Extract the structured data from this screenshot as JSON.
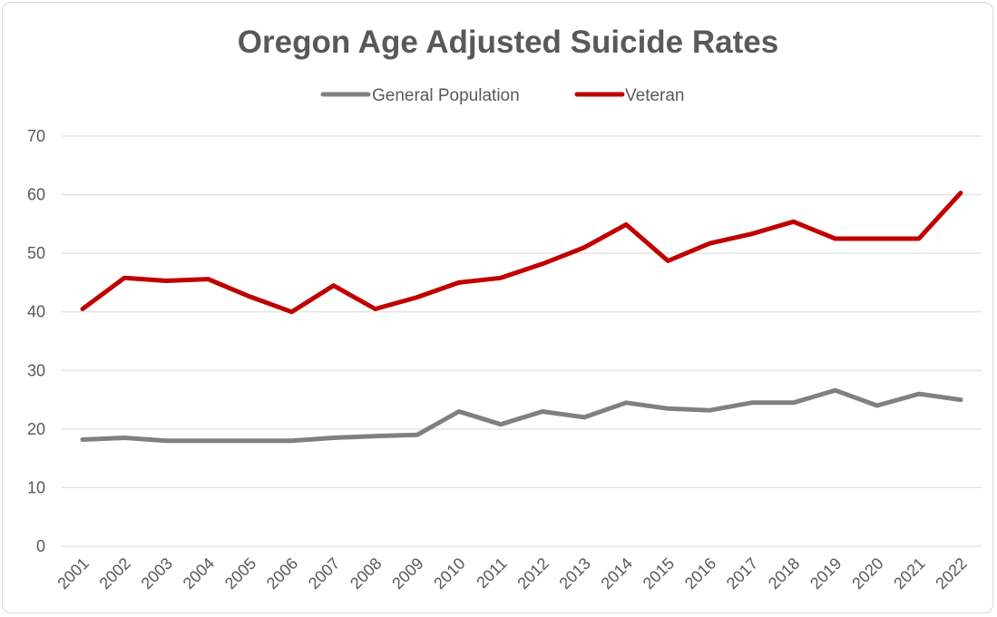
{
  "chart_data": {
    "type": "line",
    "title": "Oregon Age Adjusted Suicide Rates",
    "xlabel": "",
    "ylabel": "",
    "categories": [
      "2001",
      "2002",
      "2003",
      "2004",
      "2005",
      "2006",
      "2007",
      "2008",
      "2009",
      "2010",
      "2011",
      "2012",
      "2013",
      "2014",
      "2015",
      "2016",
      "2017",
      "2018",
      "2019",
      "2020",
      "2021",
      "2022"
    ],
    "ylim": [
      0,
      70
    ],
    "yticks": [
      0,
      10,
      20,
      30,
      40,
      50,
      60,
      70
    ],
    "grid": true,
    "legend_position": "top",
    "series": [
      {
        "name": "General Population",
        "color": "#808080",
        "values": [
          18.2,
          18.5,
          18.0,
          18.0,
          18.0,
          18.0,
          18.5,
          18.8,
          19.0,
          23.0,
          20.8,
          23.0,
          22.0,
          24.5,
          23.5,
          23.2,
          24.5,
          24.5,
          26.6,
          24.0,
          26.0,
          25.0
        ]
      },
      {
        "name": "Veteran",
        "color": "#c00000",
        "values": [
          40.5,
          45.8,
          45.3,
          45.6,
          42.6,
          40.0,
          44.5,
          40.5,
          42.5,
          45.0,
          45.8,
          48.2,
          51.0,
          54.9,
          48.7,
          51.7,
          53.3,
          55.4,
          52.5,
          52.5,
          52.5,
          60.3
        ]
      }
    ]
  }
}
